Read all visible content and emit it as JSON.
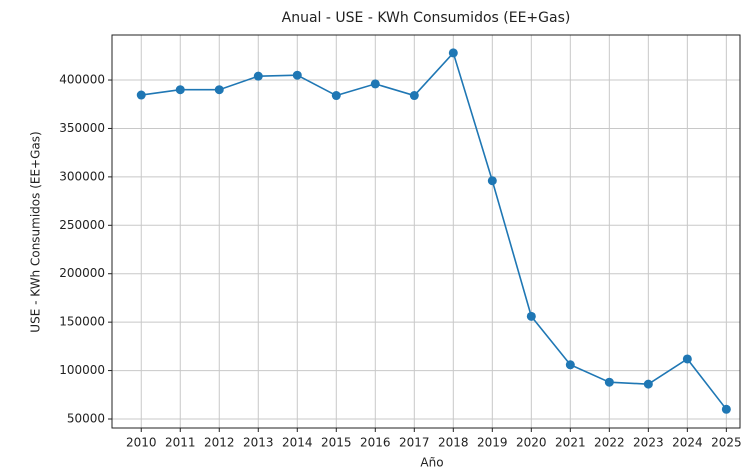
{
  "chart_data": {
    "type": "line",
    "title": "Anual - USE - KWh Consumidos (EE+Gas)",
    "x_label": "Año",
    "y_label": "USE - KWh Consumidos (EE+Gas)",
    "x": [
      2010,
      2011,
      2012,
      2013,
      2014,
      2015,
      2016,
      2017,
      2018,
      2019,
      2020,
      2021,
      2022,
      2023,
      2024,
      2025
    ],
    "series": [
      {
        "name": "USE - KWh Consumidos (EE+Gas)",
        "color": "#1f77b4",
        "values": [
          384500,
          390000,
          390000,
          404000,
          405000,
          384000,
          396000,
          384000,
          428000,
          296000,
          156000,
          106000,
          88000,
          86000,
          112000,
          60000
        ]
      }
    ],
    "xlim": [
      2009.25,
      2025.35
    ],
    "ylim": [
      40700,
      446500
    ],
    "xticks": [
      2010,
      2011,
      2012,
      2013,
      2014,
      2015,
      2016,
      2017,
      2018,
      2019,
      2020,
      2021,
      2022,
      2023,
      2024,
      2025
    ],
    "yticks": [
      50000,
      100000,
      150000,
      200000,
      250000,
      300000,
      350000,
      400000
    ],
    "grid": true
  }
}
